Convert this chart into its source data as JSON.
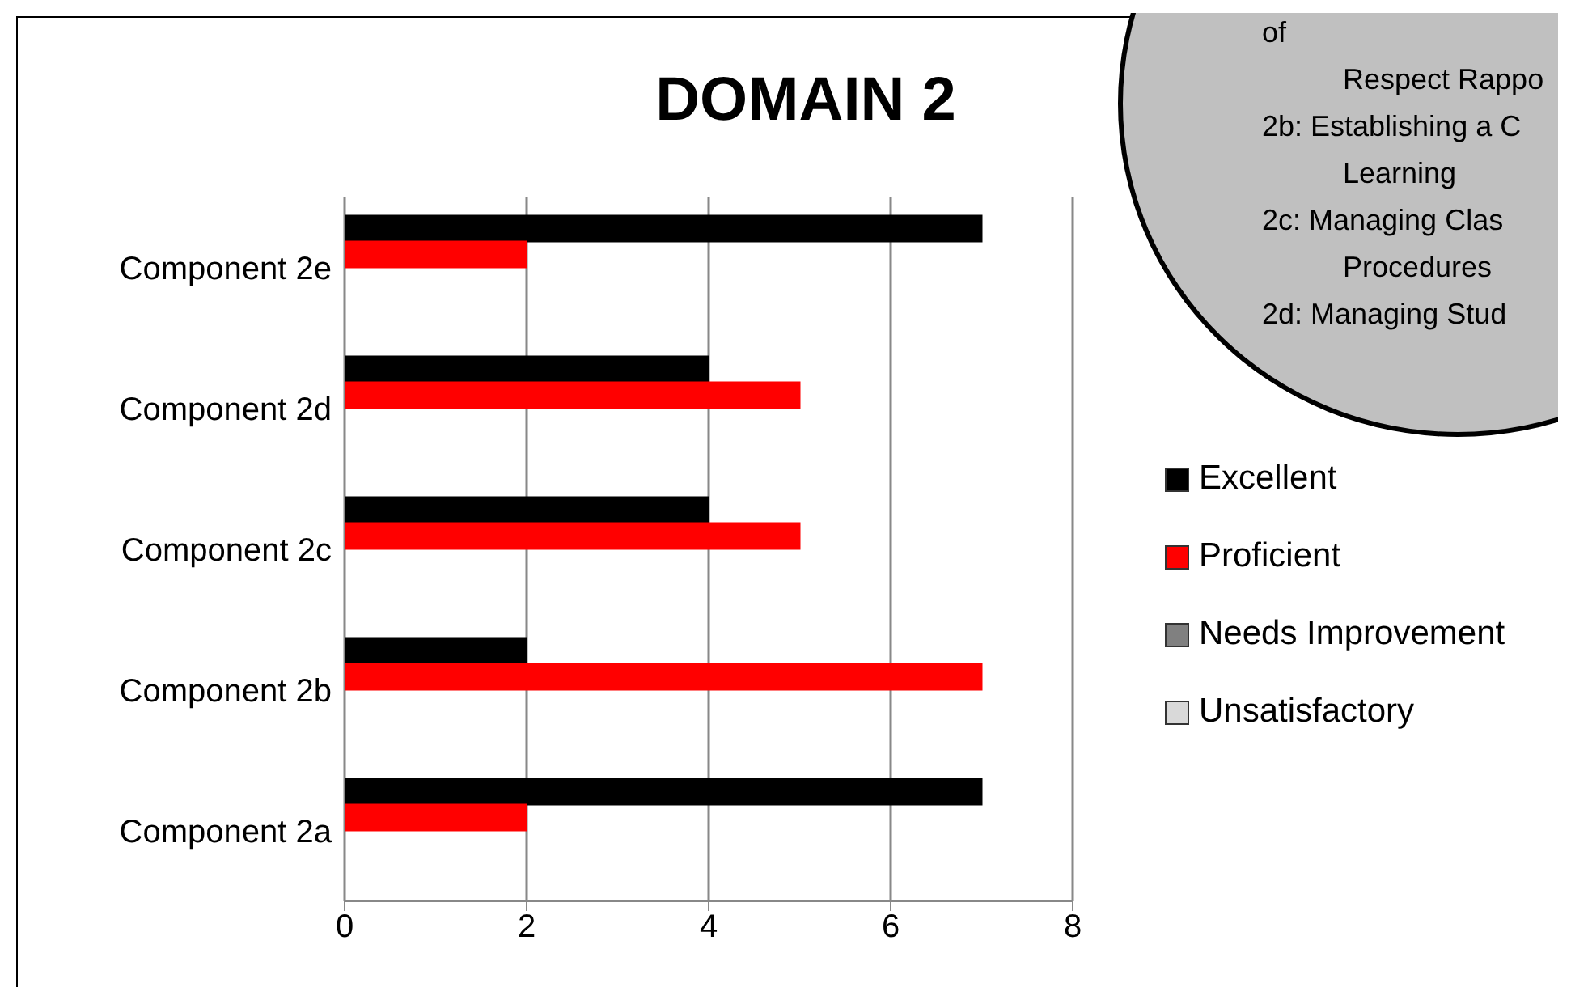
{
  "chart_data": {
    "type": "bar",
    "orientation": "horizontal",
    "title": "DOMAIN 2",
    "categories": [
      "Component 2e",
      "Component 2d",
      "Component 2c",
      "Component 2b",
      "Component 2a"
    ],
    "series": [
      {
        "name": "Excellent",
        "color": "#000000",
        "values": [
          7,
          4,
          4,
          2,
          7
        ]
      },
      {
        "name": "Proficient",
        "color": "#ff0000",
        "values": [
          2,
          5,
          5,
          7,
          2
        ]
      },
      {
        "name": "Needs Improvement",
        "color": "#808080",
        "values": [
          0,
          0,
          0,
          0,
          0
        ]
      },
      {
        "name": "Unsatisfactory",
        "color": "#d9d9d9",
        "values": [
          0,
          0,
          0,
          0,
          0
        ]
      }
    ],
    "xlim": [
      0,
      8
    ],
    "xticks": [
      0,
      2,
      4,
      6,
      8
    ],
    "grid": "x",
    "legend": "right",
    "annotations": [
      "of",
      "Respect Rappo",
      "2b:  Establishing a C",
      "Learning",
      "2c:  Managing Clas",
      "Procedures",
      "2d:  Managing Stud"
    ]
  }
}
